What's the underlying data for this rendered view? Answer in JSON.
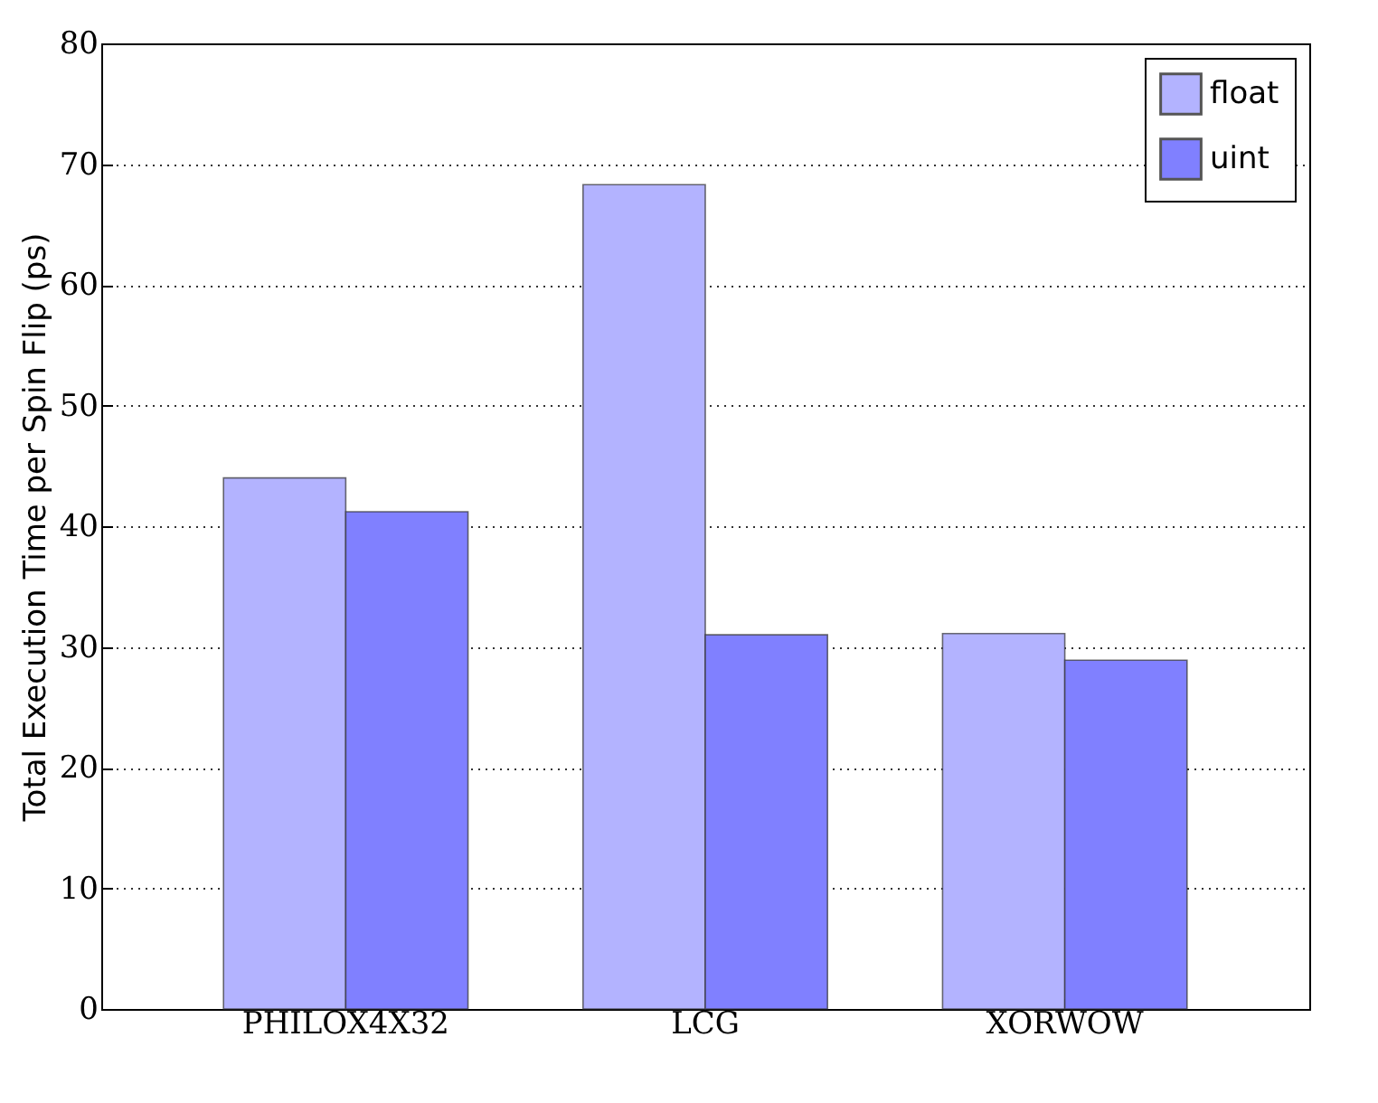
{
  "chart_data": {
    "type": "bar",
    "ylabel": "Total Execution Time per Spin Flip (ps)",
    "categories": [
      "PHILOX4X32",
      "LCG",
      "XORWOW"
    ],
    "series": [
      {
        "name": "float",
        "color": "#b3b3ff",
        "values": [
          44.0,
          68.3,
          31.1
        ]
      },
      {
        "name": "uint",
        "color": "#8080ff",
        "values": [
          41.2,
          31.0,
          28.9
        ]
      }
    ],
    "ylim": [
      0,
      80
    ],
    "yticks": [
      0,
      10,
      20,
      30,
      40,
      50,
      60,
      70,
      80
    ],
    "grid": "y",
    "legend": "top right"
  }
}
